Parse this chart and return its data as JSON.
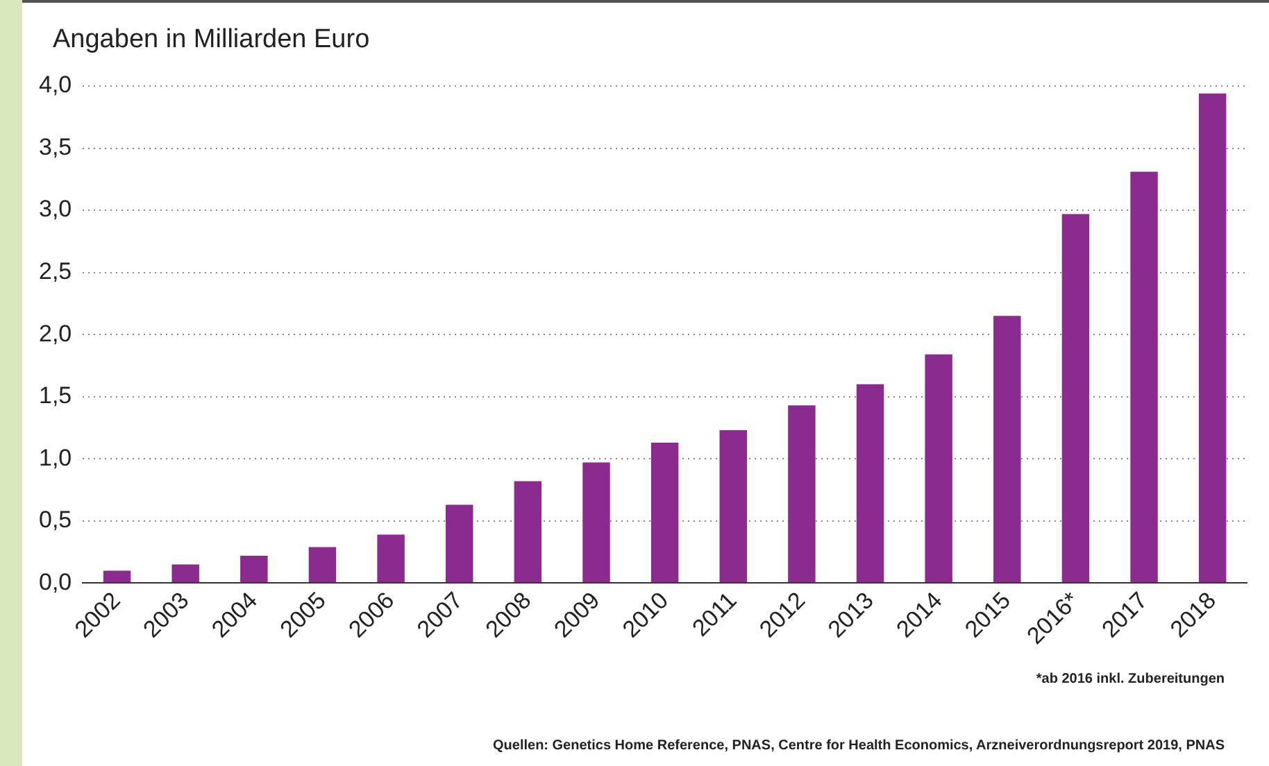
{
  "chart_data": {
    "type": "bar",
    "ylabel": "Angaben in Milliarden Euro",
    "categories": [
      "2002",
      "2003",
      "2004",
      "2005",
      "2006",
      "2007",
      "2008",
      "2009",
      "2010",
      "2011",
      "2012",
      "2013",
      "2014",
      "2015",
      "2016*",
      "2017",
      "2018"
    ],
    "values": [
      0.1,
      0.15,
      0.22,
      0.29,
      0.39,
      0.63,
      0.82,
      0.97,
      1.13,
      1.23,
      1.43,
      1.6,
      1.84,
      2.15,
      2.97,
      3.31,
      3.94
    ],
    "color": "#8b2a8f",
    "ylim": [
      0,
      4
    ],
    "yticks": [
      {
        "value": 0,
        "label": "0,0"
      },
      {
        "value": 0.5,
        "label": "0,5"
      },
      {
        "value": 1,
        "label": "1,0"
      },
      {
        "value": 1.5,
        "label": "1,5"
      },
      {
        "value": 2,
        "label": "2,0"
      },
      {
        "value": 2.5,
        "label": "2,5"
      },
      {
        "value": 3,
        "label": "3,0"
      },
      {
        "value": 3.5,
        "label": "3,5"
      },
      {
        "value": 4,
        "label": "4,0"
      }
    ],
    "grid": "y",
    "annotations": [
      "*ab 2016 inkl. Zubereitungen",
      "Quellen: Genetics Home Reference, PNAS, Centre for Health Economics, Arzneiverordnungsreport 2019, PNAS"
    ]
  }
}
